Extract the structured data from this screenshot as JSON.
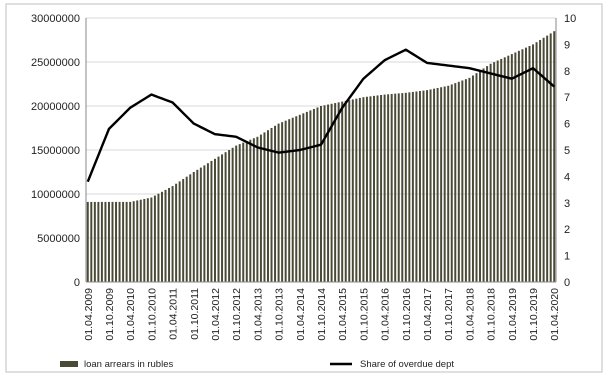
{
  "chart_data": {
    "type": "bar",
    "title": "",
    "xlabel": "",
    "ylabel_left": "",
    "ylabel_right": "",
    "grid": true,
    "legend_position": "bottom",
    "y_left": {
      "min": 0,
      "max": 30000000,
      "ticks": [
        "0",
        "5000000",
        "10000000",
        "15000000",
        "20000000",
        "25000000",
        "30000000"
      ]
    },
    "y_right": {
      "min": 0,
      "max": 10,
      "ticks": [
        "0",
        "1",
        "2",
        "3",
        "4",
        "5",
        "6",
        "7",
        "8",
        "9",
        "10"
      ]
    },
    "x_tick_labels": [
      "01.04.2009",
      "01.10.2009",
      "01.04.2010",
      "01.10.2010",
      "01.04.2011",
      "01.10.2011",
      "01.04.2012",
      "01.10.2012",
      "01.04.2013",
      "01.10.2013",
      "01.04.2014",
      "01.10.2014",
      "01.04.2015",
      "01.10.2015",
      "01.04.2016",
      "01.10.2016",
      "01.04.2017",
      "01.10.2017",
      "01.04.2018",
      "01.10.2018",
      "01.04.2019",
      "01.10.2019",
      "01.04.2020"
    ],
    "series": [
      {
        "name": "loan arrears in rubles",
        "kind": "bar",
        "axis": "left",
        "color": "#4a4a36",
        "x": [
          "01.04.2009",
          "01.10.2009",
          "01.04.2010",
          "01.10.2010",
          "01.04.2011",
          "01.10.2011",
          "01.04.2012",
          "01.10.2012",
          "01.04.2013",
          "01.10.2013",
          "01.04.2014",
          "01.10.2014",
          "01.04.2015",
          "01.10.2015",
          "01.04.2016",
          "01.10.2016",
          "01.04.2017",
          "01.10.2017",
          "01.04.2018",
          "01.10.2018",
          "01.04.2019",
          "01.10.2019",
          "01.04.2020"
        ],
        "values": [
          9100000,
          9100000,
          9100000,
          9600000,
          10900000,
          12500000,
          14000000,
          15500000,
          16500000,
          18000000,
          19000000,
          20000000,
          20500000,
          21000000,
          21300000,
          21500000,
          21800000,
          22300000,
          23200000,
          24800000,
          25900000,
          27000000,
          28500000
        ]
      },
      {
        "name": "Share of overdue dept",
        "kind": "line",
        "axis": "right",
        "color": "#000000",
        "x": [
          "01.04.2009",
          "01.10.2009",
          "01.04.2010",
          "01.10.2010",
          "01.04.2011",
          "01.10.2011",
          "01.04.2012",
          "01.10.2012",
          "01.04.2013",
          "01.10.2013",
          "01.04.2014",
          "01.10.2014",
          "01.04.2015",
          "01.10.2015",
          "01.04.2016",
          "01.10.2016",
          "01.04.2017",
          "01.10.2017",
          "01.04.2018",
          "01.10.2018",
          "01.04.2019",
          "01.10.2019",
          "01.04.2020"
        ],
        "values": [
          3.8,
          5.8,
          6.6,
          7.1,
          6.8,
          6.0,
          5.6,
          5.5,
          5.1,
          4.9,
          5.0,
          5.2,
          6.6,
          7.7,
          8.4,
          8.8,
          8.3,
          8.2,
          8.1,
          7.9,
          7.7,
          8.1,
          7.4
        ]
      }
    ],
    "legend": [
      "loan arrears in rubles",
      "Share of overdue dept"
    ]
  }
}
